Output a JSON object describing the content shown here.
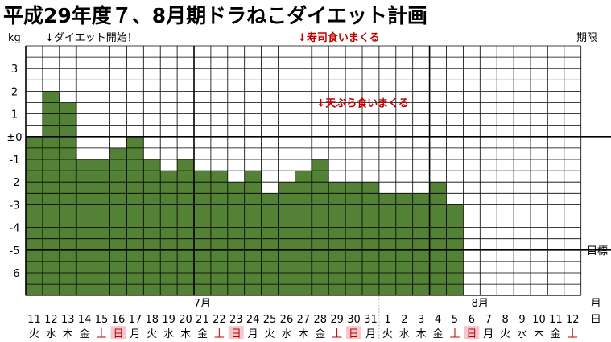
{
  "title": "平成29年度７、8月期ドラねこダイエット計画",
  "header": {
    "unit": "kg",
    "start_note": "↓ダイエット開始！",
    "sushi_note": "↓寿司食いまくる",
    "deadline": "期限"
  },
  "colors": {
    "bar": "#538135",
    "grid": "#000000",
    "note_red": "#c00000",
    "weekend_bg": "#f4c7cc",
    "weekend_text": "#c00000"
  },
  "chart_data": {
    "type": "bar",
    "title": "平成29年度７、8月期ドラねこダイエット計画",
    "ylabel": "kg",
    "ylim": [
      -7,
      4
    ],
    "y_ticks": [
      "3",
      "2",
      "1",
      "±0",
      "-1",
      "-2",
      "-3",
      "-4",
      "-5",
      "-6"
    ],
    "y_tick_values": [
      3,
      2,
      1,
      0,
      -1,
      -2,
      -3,
      -4,
      -5,
      -6
    ],
    "categories": [
      "11",
      "12",
      "13",
      "14",
      "15",
      "16",
      "17",
      "18",
      "19",
      "20",
      "21",
      "22",
      "23",
      "24",
      "25",
      "26",
      "27",
      "28",
      "29",
      "30",
      "31",
      "1",
      "2",
      "3",
      "4",
      "5",
      "6",
      "7",
      "8",
      "9",
      "10",
      "11",
      "12"
    ],
    "weekdays": [
      "火",
      "水",
      "木",
      "金",
      "土",
      "日",
      "月",
      "火",
      "水",
      "木",
      "金",
      "土",
      "日",
      "月",
      "火",
      "水",
      "木",
      "金",
      "土",
      "日",
      "月",
      "火",
      "水",
      "木",
      "金",
      "土",
      "日",
      "月",
      "火",
      "水",
      "木",
      "金",
      "土"
    ],
    "values": [
      0,
      2,
      1.5,
      -1,
      -1,
      -0.5,
      0,
      -1,
      -1.5,
      -1,
      -1.5,
      -1.5,
      -2,
      -1.5,
      -2.5,
      -2,
      -1.5,
      -1,
      -2,
      -2,
      -2,
      -2.5,
      -2.5,
      -2.5,
      -2,
      -3,
      null,
      null,
      null,
      null,
      null,
      null,
      null
    ],
    "month_labels": [
      {
        "label": "7月",
        "from": 0,
        "to": 20
      },
      {
        "label": "8月",
        "from": 21,
        "to": 32
      }
    ],
    "x_unit": "月",
    "day_unit": "日",
    "target": {
      "value": -5,
      "label": "目標"
    },
    "annotations": [
      {
        "text": "↓天ぷら食いまくる",
        "category_index": 17,
        "y": 1.5
      }
    ],
    "grid": true
  }
}
